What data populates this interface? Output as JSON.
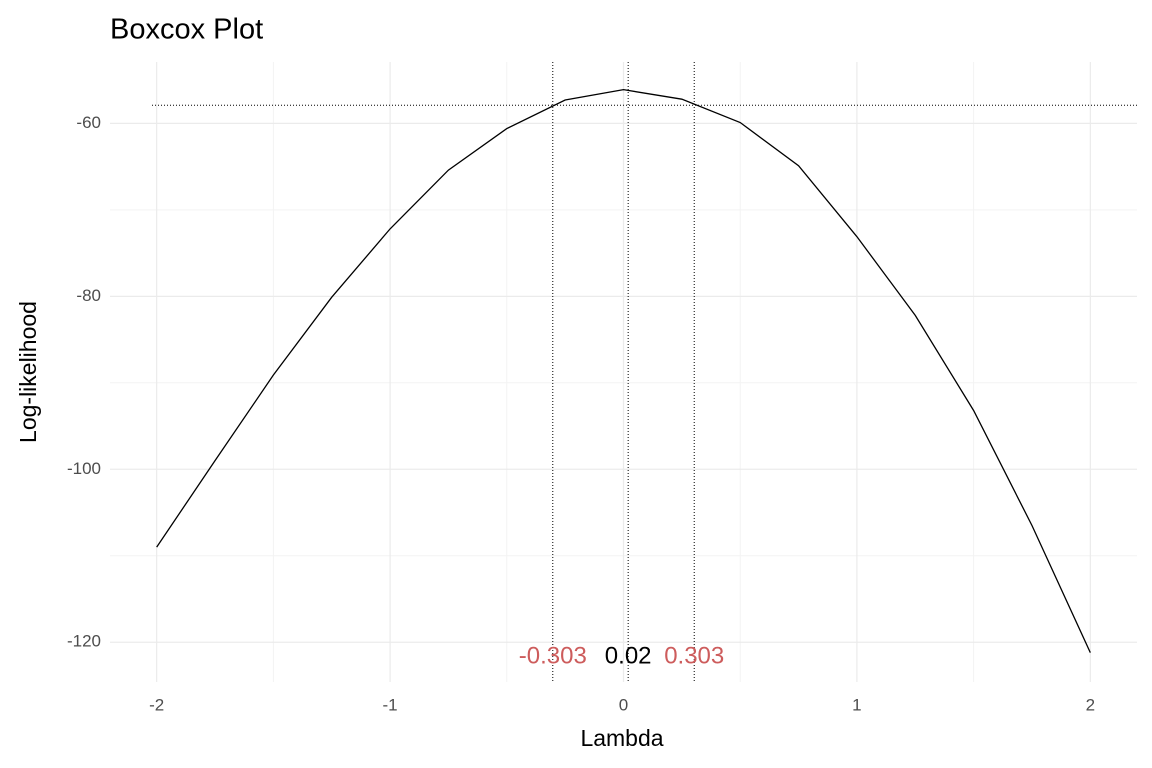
{
  "chart_data": {
    "type": "line",
    "title": "Boxcox Plot",
    "x_label": "Lambda",
    "y_label": "Log-likelihood",
    "x": [
      -2,
      -1.75,
      -1.5,
      -1.25,
      -1,
      -0.75,
      -0.5,
      -0.25,
      0,
      0.25,
      0.5,
      0.75,
      1,
      1.25,
      1.5,
      1.75,
      2
    ],
    "values": [
      -109.0,
      -99.0,
      -89.1,
      -80.1,
      -72.2,
      -65.4,
      -60.6,
      -57.3,
      -56.1,
      -57.2,
      -59.9,
      -64.9,
      -73.1,
      -82.2,
      -93.2,
      -106.5,
      -121.2
    ],
    "color": "#000000",
    "xlim": [
      -2.2,
      2.2
    ],
    "ylim": [
      -124.6,
      -52.9
    ],
    "xticks": [
      -2,
      -1,
      0,
      1,
      2
    ],
    "yticks": [
      -120,
      -100,
      -80,
      -60
    ],
    "xminor": [
      -1.5,
      -0.5,
      0.5,
      1.5
    ],
    "yminor": [
      -110,
      -90,
      -70
    ],
    "grid": true,
    "hline": -57.9,
    "vlines": [
      {
        "value": -0.303,
        "label": "-0.303",
        "color": "#cd5c5c"
      },
      {
        "value": 0.02,
        "label": "0.02",
        "color": "#000000"
      },
      {
        "value": 0.303,
        "label": "0.303",
        "color": "#cd5c5c"
      }
    ]
  }
}
